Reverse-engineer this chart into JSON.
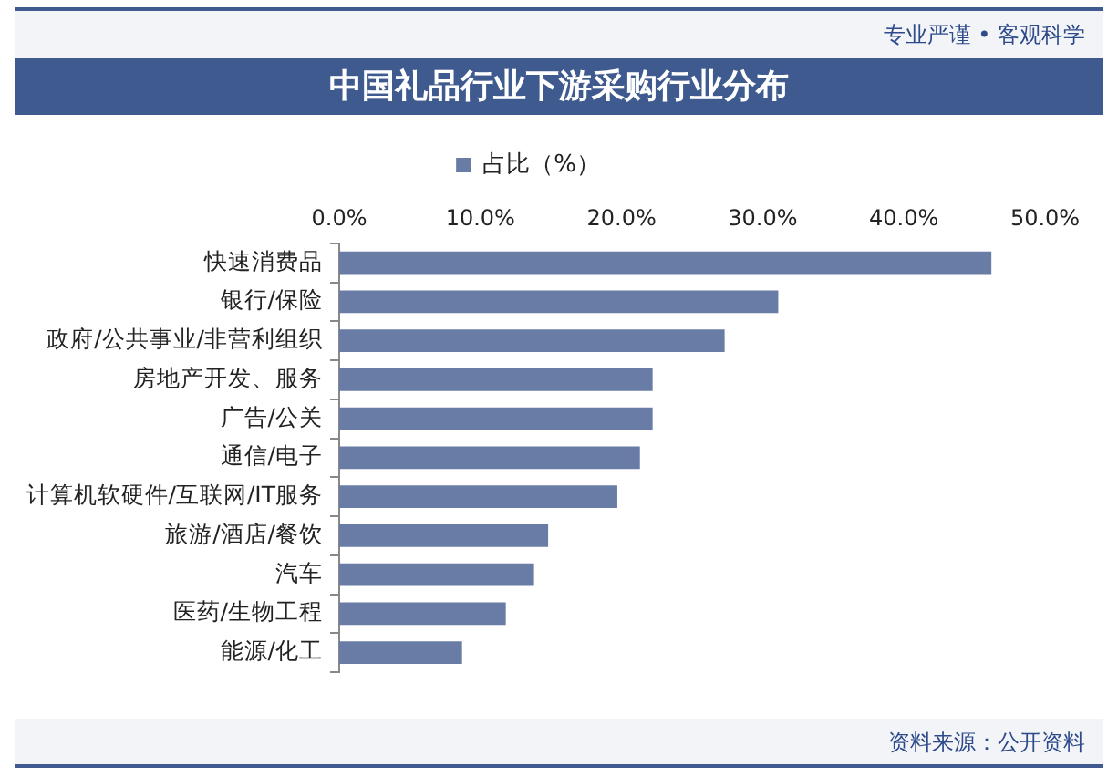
{
  "chart_data": {
    "type": "bar",
    "orientation": "horizontal",
    "title": "中国礼品行业下游采购行业分布",
    "categories": [
      "快速消费品",
      "银行/保险",
      "政府/公共事业/非营利组织",
      "房地产开发、服务",
      "广告/公关",
      "通信/电子",
      "计算机软硬件/互联网/IT服务",
      "旅游/酒店/餐饮",
      "汽车",
      "医药/生物工程",
      "能源/化工"
    ],
    "series": [
      {
        "name": "占比（%）",
        "color": "#687ca5",
        "values": [
          46.2,
          31.1,
          27.3,
          22.2,
          22.2,
          21.3,
          19.7,
          14.8,
          13.8,
          11.8,
          8.7
        ]
      }
    ],
    "xlim": [
      0,
      50
    ],
    "xticks": [
      {
        "value": 0,
        "label": "0.0%"
      },
      {
        "value": 10,
        "label": "10.0%"
      },
      {
        "value": 20,
        "label": "20.0%"
      },
      {
        "value": 30,
        "label": "30.0%"
      },
      {
        "value": 40,
        "label": "40.0%"
      },
      {
        "value": 50,
        "label": "50.0%"
      }
    ],
    "grid": false,
    "legend": "top",
    "annotations": [
      "专业严谨 • 客观科学",
      "资料来源：公开资料"
    ]
  }
}
